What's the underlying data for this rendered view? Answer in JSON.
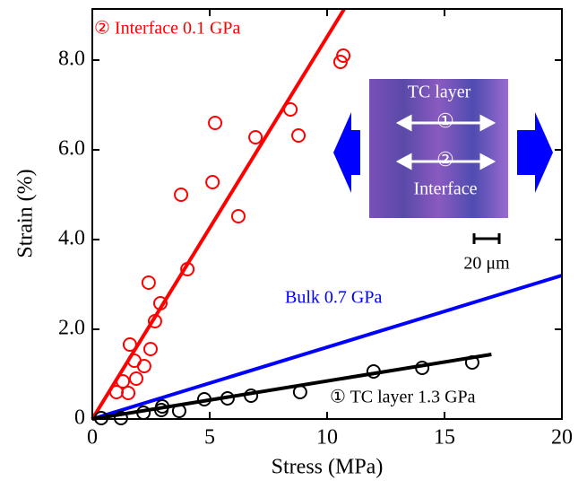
{
  "chart_data": {
    "type": "scatter",
    "xlabel": "Stress (MPa)",
    "ylabel": "Strain (%)",
    "xlim": [
      0,
      20
    ],
    "ylim": [
      0,
      9.14
    ],
    "xticks": [
      0,
      5,
      10,
      15,
      20
    ],
    "yticks": [
      0,
      {
        "value": 2,
        "label": "2.0"
      },
      {
        "value": 4,
        "label": "4.0"
      },
      {
        "value": 6,
        "label": "6.0"
      },
      {
        "value": 8,
        "label": "8.0"
      }
    ],
    "series": [
      {
        "mode": "markers",
        "color": "#ff0000",
        "x": [
          10.69,
          10.57,
          8.44,
          8.78,
          5.23,
          6.95,
          5.12,
          3.78,
          6.22,
          4.05,
          2.4,
          2.9,
          2.67,
          2.48,
          1.6,
          1.79,
          2.21,
          1.87,
          1.3,
          1.03,
          1.53
        ],
        "y": [
          8.1,
          7.96,
          6.9,
          6.32,
          6.6,
          6.28,
          5.28,
          5.0,
          4.52,
          3.34,
          3.04,
          2.58,
          2.18,
          1.56,
          1.66,
          1.3,
          1.18,
          0.9,
          0.84,
          0.6,
          0.58
        ]
      },
      {
        "mode": "line",
        "color": "#ff0000",
        "x": [
          0,
          10.73
        ],
        "y": [
          0,
          9.14
        ]
      },
      {
        "mode": "line",
        "color": "#0000ff",
        "x": [
          0,
          20
        ],
        "y": [
          0,
          3.2
        ]
      },
      {
        "mode": "line",
        "color": "#000000",
        "x": [
          0,
          17
        ],
        "y": [
          0,
          1.44
        ]
      },
      {
        "mode": "markers",
        "color": "#000000",
        "x": [
          0.38,
          1.22,
          2.18,
          2.94,
          2.98,
          3.7,
          4.77,
          5.76,
          6.76,
          8.85,
          11.98,
          14.05,
          16.18
        ],
        "y": [
          0.02,
          0.02,
          0.14,
          0.2,
          0.28,
          0.18,
          0.44,
          0.46,
          0.52,
          0.6,
          1.06,
          1.14,
          1.26
        ]
      }
    ],
    "annotations": [
      {
        "text": "② Interface 0.1 GPa",
        "color": "#ff0000"
      },
      {
        "text": "Bulk 0.7 GPa",
        "color": "#0000ff"
      },
      {
        "text": "① TC layer 1.3 GPa",
        "color": "#000000"
      }
    ],
    "inset": {
      "top_label": "TC layer",
      "marker_1": "①",
      "marker_2": "②",
      "bottom_label": "Interface",
      "scale_bar": "20 μm"
    }
  }
}
